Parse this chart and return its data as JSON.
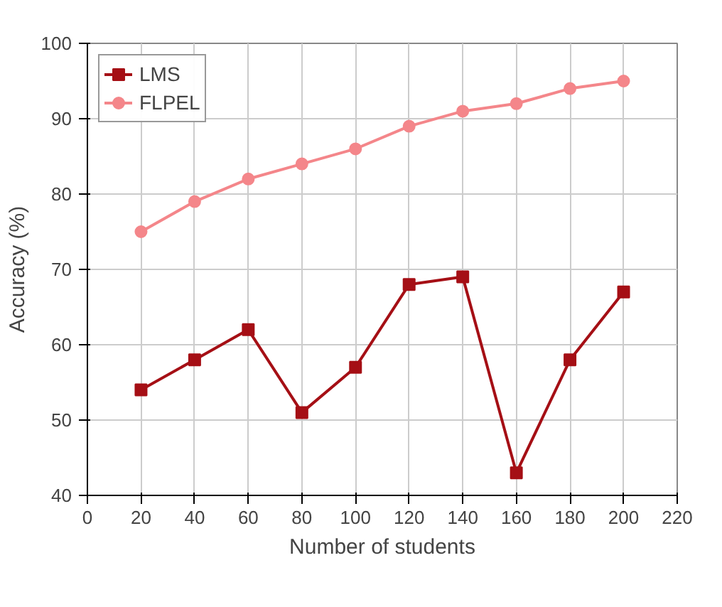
{
  "chart_data": {
    "type": "line",
    "xlabel": "Number of students",
    "ylabel": "Accuracy (%)",
    "x": [
      20,
      40,
      60,
      80,
      100,
      120,
      140,
      160,
      180,
      200
    ],
    "series": [
      {
        "name": "LMS",
        "color": "#a50f15",
        "values": [
          54,
          58,
          62,
          51,
          57,
          68,
          69,
          43,
          58,
          67
        ],
        "marker": "square"
      },
      {
        "name": "FLPEL",
        "color": "#f4868a",
        "values": [
          75,
          79,
          82,
          84,
          86,
          89,
          91,
          92,
          94,
          95
        ],
        "marker": "circle"
      }
    ],
    "xlim": [
      0,
      220
    ],
    "xticks": [
      0,
      20,
      40,
      60,
      80,
      100,
      120,
      140,
      160,
      180,
      200,
      220
    ],
    "ylim": [
      40,
      100
    ],
    "yticks": [
      40,
      50,
      60,
      70,
      80,
      90,
      100
    ],
    "grid": true,
    "legend": "top left",
    "line_style": "solid"
  }
}
